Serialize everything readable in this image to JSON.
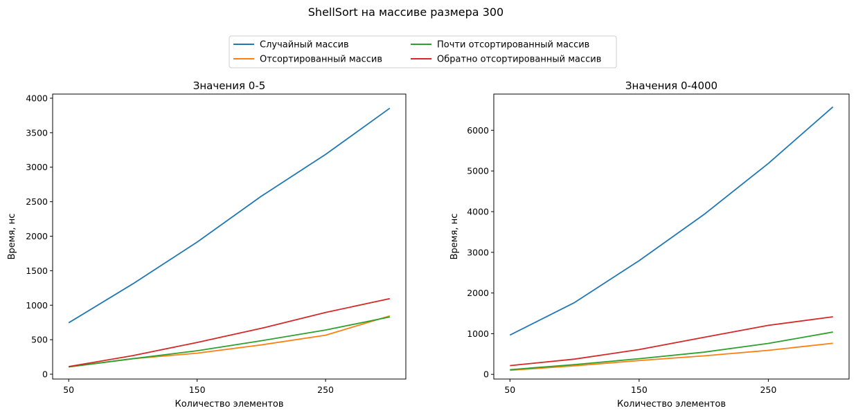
{
  "figure": {
    "suptitle": "ShellSort на массиве размера 300",
    "legend": {
      "placement": "top-center",
      "entries": [
        {
          "label": "Случайный массив",
          "color": "#1f77b4"
        },
        {
          "label": "Почти отсортированный массив",
          "color": "#2ca02c"
        },
        {
          "label": "Отсортированный массив",
          "color": "#ff7f0e"
        },
        {
          "label": "Обратно отсортированный массив",
          "color": "#d62728"
        }
      ]
    }
  },
  "chart_data": [
    {
      "type": "line",
      "title": "Значения 0-5",
      "xlabel": "Количество элементов",
      "ylabel": "Время, нс",
      "x": [
        50,
        100,
        150,
        200,
        250,
        300
      ],
      "xticks": [
        "50",
        "150",
        "250"
      ],
      "xtick_values": [
        50,
        150,
        250
      ],
      "xlim": [
        37.5,
        312.5
      ],
      "ylim": [
        -70,
        4060
      ],
      "yticks": [
        "0",
        "500",
        "1000",
        "1500",
        "2000",
        "2500",
        "3000",
        "3500",
        "4000"
      ],
      "ytick_values": [
        0,
        500,
        1000,
        1500,
        2000,
        2500,
        3000,
        3500,
        4000
      ],
      "grid": false,
      "series": [
        {
          "name": "Случайный массив",
          "color": "#1f77b4",
          "values": [
            745,
            1310,
            1915,
            2580,
            3185,
            3855
          ]
        },
        {
          "name": "Отсортированный массив",
          "color": "#ff7f0e",
          "values": [
            105,
            225,
            305,
            425,
            565,
            845
          ]
        },
        {
          "name": "Почти отсортированный массив",
          "color": "#2ca02c",
          "values": [
            105,
            225,
            340,
            485,
            640,
            830
          ]
        },
        {
          "name": "Обратно отсортированный массив",
          "color": "#d62728",
          "values": [
            110,
            270,
            460,
            665,
            895,
            1095
          ]
        }
      ]
    },
    {
      "type": "line",
      "title": "Значения 0-4000",
      "xlabel": "Количество элементов",
      "ylabel": "Время, нс",
      "x": [
        50,
        100,
        150,
        200,
        250,
        300
      ],
      "xticks": [
        "50",
        "150",
        "250"
      ],
      "xtick_values": [
        50,
        150,
        250
      ],
      "xlim": [
        37.5,
        312.5
      ],
      "ylim": [
        -115,
        6890
      ],
      "yticks": [
        "0",
        "1000",
        "2000",
        "3000",
        "4000",
        "5000",
        "6000"
      ],
      "ytick_values": [
        0,
        1000,
        2000,
        3000,
        4000,
        5000,
        6000
      ],
      "grid": false,
      "series": [
        {
          "name": "Случайный массив",
          "color": "#1f77b4",
          "values": [
            965,
            1765,
            2795,
            3925,
            5185,
            6575
          ]
        },
        {
          "name": "Отсортированный массив",
          "color": "#ff7f0e",
          "values": [
            100,
            210,
            340,
            455,
            590,
            765
          ]
        },
        {
          "name": "Почти отсортированный массив",
          "color": "#2ca02c",
          "values": [
            115,
            240,
            385,
            545,
            760,
            1040
          ]
        },
        {
          "name": "Обратно отсортированный массив",
          "color": "#d62728",
          "values": [
            215,
            375,
            610,
            910,
            1205,
            1415
          ]
        }
      ]
    }
  ]
}
